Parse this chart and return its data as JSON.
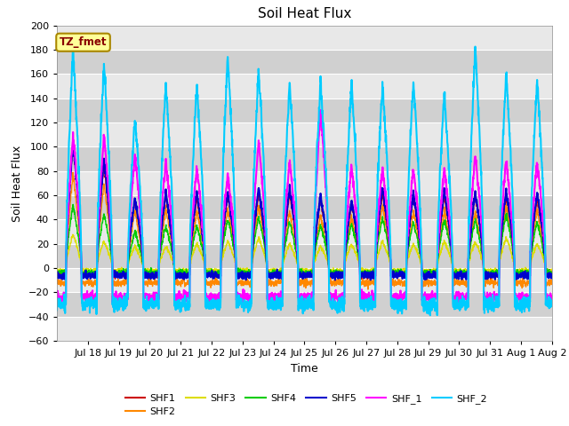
{
  "title": "Soil Heat Flux",
  "ylabel": "Soil Heat Flux",
  "xlabel": "Time",
  "ylim": [
    -60,
    200
  ],
  "ytick_values": [
    -60,
    -40,
    -20,
    0,
    20,
    40,
    60,
    80,
    100,
    120,
    140,
    160,
    180,
    200
  ],
  "xtick_labels": [
    "Jul 18",
    "Jul 19",
    "Jul 20",
    "Jul 21",
    "Jul 22",
    "Jul 23",
    "Jul 24",
    "Jul 25",
    "Jul 26",
    "Jul 27",
    "Jul 28",
    "Jul 29",
    "Jul 30",
    "Jul 31",
    "Aug 1",
    "Aug 2"
  ],
  "series_names": [
    "SHF1",
    "SHF2",
    "SHF3",
    "SHF4",
    "SHF5",
    "SHF_1",
    "SHF_2"
  ],
  "series_colors": [
    "#cc0000",
    "#ff8800",
    "#dddd00",
    "#00cc00",
    "#0000cc",
    "#ff00ff",
    "#00ccff"
  ],
  "series_linewidths": [
    1.0,
    1.0,
    1.0,
    1.0,
    1.5,
    1.5,
    1.5
  ],
  "annotation_text": "TZ_fmet",
  "annotation_color": "#880000",
  "annotation_bg": "#ffff99",
  "annotation_border": "#aa8800",
  "plot_bg_light": "#e8e8e8",
  "plot_bg_dark": "#d0d0d0",
  "fig_bg": "#ffffff",
  "grid_color": "#ffffff",
  "title_fontsize": 11,
  "axis_fontsize": 9,
  "tick_fontsize": 8,
  "n_days": 16,
  "n_per_day": 144,
  "shf1_day_amps": [
    103,
    85,
    55,
    60,
    58,
    60,
    62,
    62,
    57,
    54,
    62,
    60,
    60,
    60,
    60,
    58
  ],
  "shf2_day_amps": [
    80,
    72,
    50,
    52,
    50,
    52,
    55,
    50,
    46,
    46,
    55,
    50,
    50,
    50,
    55,
    50
  ],
  "shf3_day_amps": [
    28,
    22,
    18,
    18,
    20,
    22,
    25,
    20,
    18,
    20,
    22,
    20,
    22,
    22,
    25,
    20
  ],
  "shf4_day_amps": [
    52,
    45,
    30,
    35,
    35,
    40,
    42,
    38,
    36,
    36,
    42,
    38,
    40,
    40,
    45,
    38
  ],
  "shf5_day_amps": [
    103,
    90,
    58,
    62,
    62,
    62,
    66,
    66,
    60,
    56,
    66,
    62,
    64,
    62,
    64,
    62
  ],
  "shf_1_day_amps": [
    110,
    110,
    93,
    88,
    82,
    78,
    105,
    88,
    130,
    83,
    82,
    82,
    82,
    93,
    88,
    88
  ],
  "shf_2_day_amps": [
    180,
    168,
    124,
    152,
    152,
    174,
    165,
    152,
    155,
    152,
    152,
    155,
    145,
    182,
    160,
    155
  ],
  "shf1_night": 8,
  "shf2_night": 15,
  "shf3_night": 3,
  "shf4_night": 6,
  "shf5_night": 10,
  "shf_1_night": 40,
  "shf_2_night": 50
}
